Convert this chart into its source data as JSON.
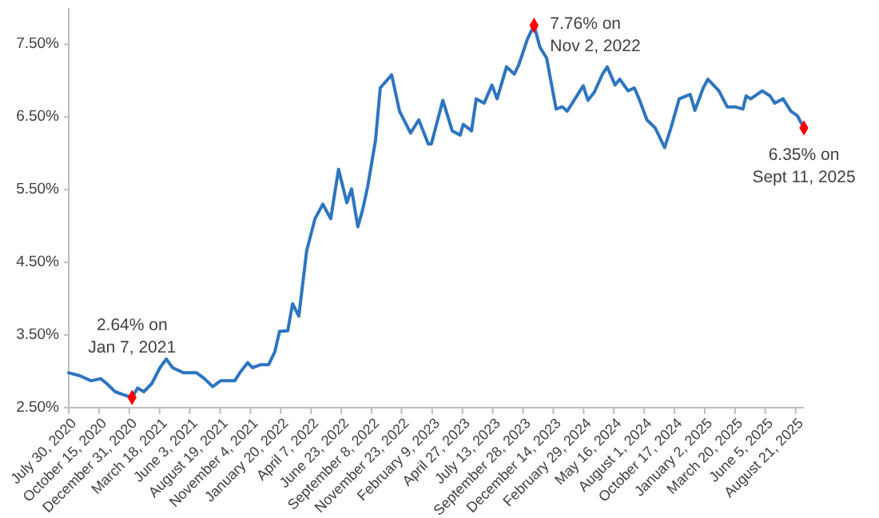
{
  "chart_data": {
    "type": "line",
    "x": [
      "2020-07-30",
      "2020-08-27",
      "2020-09-25",
      "2020-10-19",
      "2020-11-04",
      "2020-11-25",
      "2020-12-15",
      "2021-01-07",
      "2021-01-21",
      "2021-02-06",
      "2021-02-26",
      "2021-03-19",
      "2021-04-04",
      "2021-04-20",
      "2021-05-18",
      "2021-06-20",
      "2021-07-10",
      "2021-07-31",
      "2021-08-20",
      "2021-09-25",
      "2021-10-08",
      "2021-10-28",
      "2021-11-09",
      "2021-11-29",
      "2021-12-20",
      "2022-01-05",
      "2022-01-17",
      "2022-02-07",
      "2022-02-19",
      "2022-03-07",
      "2022-03-27",
      "2022-04-17",
      "2022-05-07",
      "2022-05-27",
      "2022-06-16",
      "2022-07-07",
      "2022-07-19",
      "2022-08-04",
      "2022-08-16",
      "2022-08-29",
      "2022-09-18",
      "2022-09-30",
      "2022-10-29",
      "2022-11-18",
      "2022-12-16",
      "2023-01-06",
      "2023-01-30",
      "2023-02-07",
      "2023-03-08",
      "2023-04-01",
      "2023-04-21",
      "2023-04-29",
      "2023-05-20",
      "2023-06-01",
      "2023-06-21",
      "2023-07-11",
      "2023-07-24",
      "2023-08-17",
      "2023-09-06",
      "2023-09-18",
      "2023-10-09",
      "2023-10-26",
      "2023-11-10",
      "2023-11-27",
      "2023-12-21",
      "2024-01-06",
      "2024-01-18",
      "2024-01-31",
      "2024-02-28",
      "2024-03-11",
      "2024-03-27",
      "2024-04-17",
      "2024-04-29",
      "2024-05-19",
      "2024-05-31",
      "2024-06-21",
      "2024-07-07",
      "2024-07-19",
      "2024-08-08",
      "2024-08-29",
      "2024-09-22",
      "2024-10-08",
      "2024-10-29",
      "2024-11-26",
      "2024-12-08",
      "2024-12-29",
      "2025-01-10",
      "2025-02-07",
      "2025-02-28",
      "2025-03-20",
      "2025-04-09",
      "2025-04-17",
      "2025-04-29",
      "2025-05-28",
      "2025-06-17",
      "2025-06-29",
      "2025-07-20",
      "2025-08-09",
      "2025-08-25",
      "2025-09-11"
    ],
    "series": [
      {
        "color": "#2e75c0",
        "values": [
          2.98,
          2.94,
          2.87,
          2.9,
          2.83,
          2.72,
          2.68,
          2.64,
          2.77,
          2.72,
          2.83,
          3.05,
          3.17,
          3.05,
          2.98,
          2.98,
          2.9,
          2.79,
          2.87,
          2.87,
          2.98,
          3.12,
          3.05,
          3.09,
          3.09,
          3.27,
          3.55,
          3.56,
          3.93,
          3.76,
          4.66,
          5.1,
          5.3,
          5.1,
          5.78,
          5.32,
          5.51,
          4.99,
          5.22,
          5.54,
          6.18,
          6.9,
          7.08,
          6.58,
          6.28,
          6.46,
          6.13,
          6.13,
          6.73,
          6.31,
          6.25,
          6.4,
          6.31,
          6.75,
          6.69,
          6.94,
          6.75,
          7.19,
          7.09,
          7.23,
          7.57,
          7.76,
          7.46,
          7.31,
          6.61,
          6.64,
          6.58,
          6.69,
          6.93,
          6.73,
          6.84,
          7.09,
          7.19,
          6.94,
          7.02,
          6.86,
          6.9,
          6.75,
          6.46,
          6.35,
          6.08,
          6.35,
          6.75,
          6.81,
          6.59,
          6.9,
          7.02,
          6.86,
          6.64,
          6.64,
          6.61,
          6.79,
          6.75,
          6.86,
          6.79,
          6.69,
          6.75,
          6.58,
          6.52,
          6.35
        ]
      },
      {
        "type": "scatter",
        "marker": "diamond",
        "color": "#ff0000",
        "x": [
          "2021-01-07",
          "2023-10-26",
          "2025-09-11"
        ],
        "values": [
          2.64,
          7.76,
          6.35
        ]
      }
    ],
    "xlim": [
      "2020-07-30",
      "2025-09-11"
    ],
    "xticks": [
      {
        "value": "2020-07-30",
        "label": "July 30, 2020"
      },
      {
        "value": "2020-10-15",
        "label": "October 15, 2020"
      },
      {
        "value": "2020-12-31",
        "label": "December 31, 2020"
      },
      {
        "value": "2021-03-18",
        "label": "March 18, 2021"
      },
      {
        "value": "2021-06-03",
        "label": "June 3, 2021"
      },
      {
        "value": "2021-08-19",
        "label": "August 19, 2021"
      },
      {
        "value": "2021-11-04",
        "label": "November 4, 2021"
      },
      {
        "value": "2022-01-20",
        "label": "January 20, 2022"
      },
      {
        "value": "2022-04-07",
        "label": "April 7, 2022"
      },
      {
        "value": "2022-06-23",
        "label": "June 23, 2022"
      },
      {
        "value": "2022-09-08",
        "label": "September 8, 2022"
      },
      {
        "value": "2022-11-23",
        "label": "November 23, 2022"
      },
      {
        "value": "2023-02-09",
        "label": "February 9, 2023"
      },
      {
        "value": "2023-04-27",
        "label": "April 27, 2023"
      },
      {
        "value": "2023-07-13",
        "label": "July 13, 2023"
      },
      {
        "value": "2023-09-28",
        "label": "September 28, 2023"
      },
      {
        "value": "2023-12-14",
        "label": "December 14, 2023"
      },
      {
        "value": "2024-02-29",
        "label": "February 29, 2024"
      },
      {
        "value": "2024-05-16",
        "label": "May 16, 2024"
      },
      {
        "value": "2024-08-01",
        "label": "August 1, 2024"
      },
      {
        "value": "2024-10-17",
        "label": "October 17, 2024"
      },
      {
        "value": "2025-01-02",
        "label": "January 2, 2025"
      },
      {
        "value": "2025-03-20",
        "label": "March 20, 2025"
      },
      {
        "value": "2025-06-05",
        "label": "June 5, 2025"
      },
      {
        "value": "2025-08-21",
        "label": "August 21, 2025"
      }
    ],
    "ylim": [
      2.5,
      8.0
    ],
    "yticks": [
      {
        "value": 2.5,
        "label": "2.50%"
      },
      {
        "value": 3.5,
        "label": "3.50%"
      },
      {
        "value": 4.5,
        "label": "4.50%"
      },
      {
        "value": 5.5,
        "label": "5.50%"
      },
      {
        "value": 6.5,
        "label": "6.50%"
      },
      {
        "value": 7.5,
        "label": "7.50%"
      }
    ],
    "annotations": [
      {
        "text": "2.64% on\nJan 7, 2021",
        "x": "2021-01-07",
        "y": 2.64
      },
      {
        "text": "7.76% on\nNov 2, 2022",
        "x": "2023-10-26",
        "y": 7.76
      },
      {
        "text": "6.35% on\nSept 11, 2025",
        "x": "2025-09-11",
        "y": 6.35
      }
    ],
    "grid": false,
    "marker": "none",
    "line_style": "solid"
  }
}
